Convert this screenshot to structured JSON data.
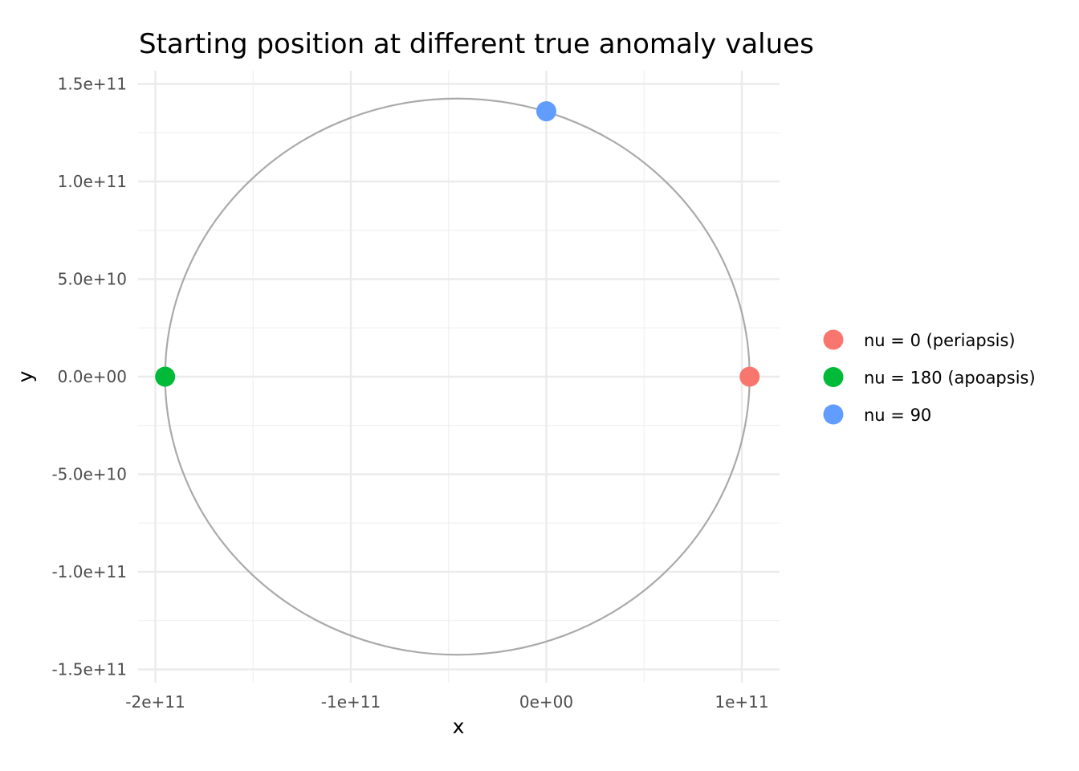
{
  "chart_data": {
    "type": "scatter",
    "title": "Starting position at different true anomaly values",
    "xlabel": "x",
    "ylabel": "y",
    "xlim": [
      -220000000000.0,
      120000000000.0
    ],
    "ylim": [
      -157000000000.0,
      157000000000.0
    ],
    "x_ticks": [
      -200000000000.0,
      -100000000000.0,
      0,
      100000000000.0
    ],
    "x_tick_labels": [
      "-2e+11",
      "-1e+11",
      "0e+00",
      "1e+11"
    ],
    "y_ticks": [
      -150000000000.0,
      -100000000000.0,
      -50000000000.0,
      0,
      50000000000.0,
      100000000000.0,
      150000000000.0
    ],
    "y_tick_labels": [
      "-1.5e+11",
      "-1.0e+11",
      "-5.0e+10",
      "0.0e+00",
      "5.0e+10",
      "1.0e+11",
      "1.5e+11"
    ],
    "grid": true,
    "legend_position": "right",
    "orbit": {
      "center_x": -45500000000.0,
      "center_y": 0,
      "semi_major": 149500000000.0,
      "semi_minor": 142500000000.0,
      "color": "#aaaaaa"
    },
    "series": [
      {
        "name": "nu = 0 (periapsis)",
        "color": "#F8766D",
        "x": 104000000000.0,
        "y": 0
      },
      {
        "name": "nu = 180 (apoapsis)",
        "color": "#00BA38",
        "x": -195000000000.0,
        "y": 0
      },
      {
        "name": "nu = 90",
        "color": "#619CFF",
        "x": 0,
        "y": 136000000000.0
      }
    ]
  }
}
